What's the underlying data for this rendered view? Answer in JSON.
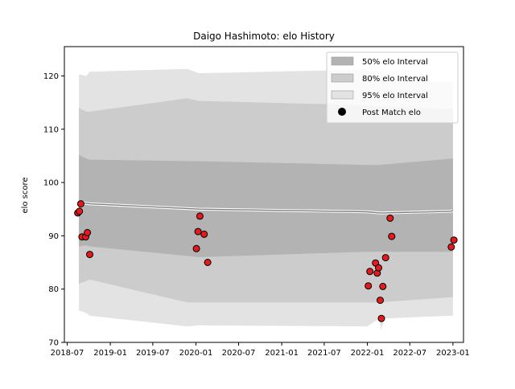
{
  "chart_data": {
    "type": "area",
    "title": "Daigo Hashimoto: elo History",
    "xlabel": "",
    "ylabel": "elo score",
    "xlim": [
      "2018-06-19",
      "2023-02-15"
    ],
    "ylim": [
      70,
      125.5
    ],
    "x_ticks": [
      "2018-07",
      "2019-01",
      "2019-07",
      "2020-01",
      "2020-07",
      "2021-01",
      "2021-07",
      "2022-01",
      "2022-07",
      "2023-01"
    ],
    "y_ticks": [
      70,
      80,
      90,
      100,
      110,
      120
    ],
    "legend_position": "top-right",
    "colors": {
      "band_50": "#b3b3b3",
      "band_80": "#cccccc",
      "band_95": "#e3e3e3",
      "mean_line": "#808080",
      "points": "#e41a1c"
    },
    "bands": [
      {
        "name": "95% elo Interval",
        "points": [
          {
            "date": "2018-08-20",
            "lower": 76.0,
            "upper": 120.3
          },
          {
            "date": "2018-09-20",
            "lower": 75.5,
            "upper": 120.0
          },
          {
            "date": "2018-10-05",
            "lower": 75.0,
            "upper": 120.8
          },
          {
            "date": "2019-11-25",
            "lower": 73.0,
            "upper": 121.3
          },
          {
            "date": "2020-01-15",
            "lower": 73.2,
            "upper": 120.5
          },
          {
            "date": "2022-01-01",
            "lower": 73.0,
            "upper": 121.2
          },
          {
            "date": "2022-02-20",
            "lower": 74.5,
            "upper": 119.0
          },
          {
            "date": "2022-03-01",
            "lower": 72.3,
            "upper": 121.0
          },
          {
            "date": "2022-03-15",
            "lower": 74.5,
            "upper": 119.0
          },
          {
            "date": "2023-01-01",
            "lower": 75.0,
            "upper": 118.8
          }
        ]
      },
      {
        "name": "80% elo Interval",
        "points": [
          {
            "date": "2018-08-20",
            "lower": 81.0,
            "upper": 114.0
          },
          {
            "date": "2018-09-20",
            "lower": 81.5,
            "upper": 113.3
          },
          {
            "date": "2018-10-05",
            "lower": 81.8,
            "upper": 113.3
          },
          {
            "date": "2019-11-25",
            "lower": 77.5,
            "upper": 115.8
          },
          {
            "date": "2020-01-15",
            "lower": 77.5,
            "upper": 115.3
          },
          {
            "date": "2022-01-01",
            "lower": 77.5,
            "upper": 114.5
          },
          {
            "date": "2022-02-20",
            "lower": 77.5,
            "upper": 114.3
          },
          {
            "date": "2023-01-01",
            "lower": 78.5,
            "upper": 113.8
          }
        ]
      },
      {
        "name": "50% elo Interval",
        "points": [
          {
            "date": "2018-08-20",
            "lower": 88.0,
            "upper": 105.2
          },
          {
            "date": "2018-09-20",
            "lower": 88.2,
            "upper": 104.5
          },
          {
            "date": "2018-10-05",
            "lower": 88.0,
            "upper": 104.3
          },
          {
            "date": "2020-01-15",
            "lower": 86.0,
            "upper": 104.0
          },
          {
            "date": "2022-01-01",
            "lower": 87.0,
            "upper": 103.3
          },
          {
            "date": "2022-02-20",
            "lower": 87.0,
            "upper": 103.3
          },
          {
            "date": "2023-01-01",
            "lower": 87.0,
            "upper": 104.5
          }
        ]
      }
    ],
    "mean_line": [
      {
        "date": "2018-08-20",
        "value": 96.3
      },
      {
        "date": "2018-10-05",
        "value": 96.0
      },
      {
        "date": "2020-01-15",
        "value": 95.0
      },
      {
        "date": "2022-01-01",
        "value": 94.5
      },
      {
        "date": "2022-02-20",
        "value": 94.3
      },
      {
        "date": "2022-03-10",
        "value": 94.3
      },
      {
        "date": "2022-12-25",
        "value": 94.6
      },
      {
        "date": "2023-01-01",
        "value": 94.8
      }
    ],
    "series": [
      {
        "name": "Post Match elo",
        "points": [
          {
            "date": "2018-08-15",
            "value": 94.3
          },
          {
            "date": "2018-08-22",
            "value": 94.6
          },
          {
            "date": "2018-08-28",
            "value": 96.0
          },
          {
            "date": "2018-09-02",
            "value": 89.8
          },
          {
            "date": "2018-09-18",
            "value": 89.8
          },
          {
            "date": "2018-09-25",
            "value": 90.6
          },
          {
            "date": "2018-10-05",
            "value": 86.5
          },
          {
            "date": "2020-01-03",
            "value": 87.6
          },
          {
            "date": "2020-01-10",
            "value": 90.8
          },
          {
            "date": "2020-01-18",
            "value": 93.7
          },
          {
            "date": "2020-02-05",
            "value": 90.3
          },
          {
            "date": "2020-02-20",
            "value": 85.0
          },
          {
            "date": "2022-01-05",
            "value": 80.6
          },
          {
            "date": "2022-01-12",
            "value": 83.3
          },
          {
            "date": "2022-02-05",
            "value": 84.9
          },
          {
            "date": "2022-02-12",
            "value": 83.0
          },
          {
            "date": "2022-02-18",
            "value": 84.0
          },
          {
            "date": "2022-02-25",
            "value": 77.9
          },
          {
            "date": "2022-03-02",
            "value": 74.5
          },
          {
            "date": "2022-03-08",
            "value": 80.5
          },
          {
            "date": "2022-03-20",
            "value": 85.9
          },
          {
            "date": "2022-04-08",
            "value": 93.3
          },
          {
            "date": "2022-04-15",
            "value": 89.9
          },
          {
            "date": "2022-12-25",
            "value": 87.9
          },
          {
            "date": "2023-01-05",
            "value": 89.2
          }
        ]
      }
    ],
    "legend": [
      {
        "label": "50% elo Interval",
        "kind": "patch",
        "color": "#b3b3b3"
      },
      {
        "label": "80% elo Interval",
        "kind": "patch",
        "color": "#cccccc"
      },
      {
        "label": "95% elo Interval",
        "kind": "patch",
        "color": "#e3e3e3"
      },
      {
        "label": "Post Match elo",
        "kind": "marker",
        "color": "#000000"
      }
    ]
  }
}
